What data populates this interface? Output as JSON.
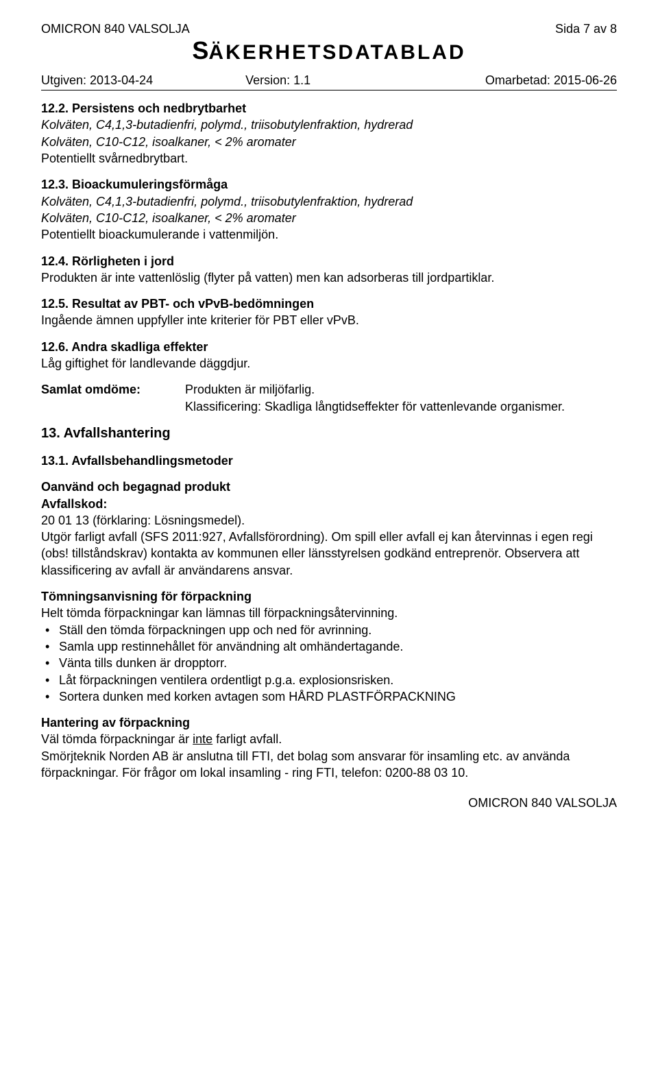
{
  "header": {
    "product": "OMICRON 840 VALSOLJA",
    "page": "Sida 7 av 8",
    "title_first": "S",
    "title_rest": "ÄKERHETSDATABLAD",
    "issued_label": "Utgiven: ",
    "issued": "2013-04-24",
    "version_label": "Version: ",
    "version": "1.1",
    "revised_label": "Omarbetad: ",
    "revised": "2015-06-26"
  },
  "s12_2": {
    "head": "12.2. Persistens och nedbrytbarhet",
    "line1": "Kolväten, C4,1,3-butadienfri, polymd., triisobutylenfraktion, hydrerad",
    "line2": "Kolväten, C10-C12, isoalkaner, < 2% aromater",
    "line3": "Potentiellt svårnedbrytbart."
  },
  "s12_3": {
    "head": "12.3. Bioackumuleringsförmåga",
    "line1": "Kolväten, C4,1,3-butadienfri, polymd., triisobutylenfraktion, hydrerad",
    "line2": "Kolväten, C10-C12, isoalkaner, < 2% aromater",
    "line3": "Potentiellt bioackumulerande i vattenmiljön."
  },
  "s12_4": {
    "head": "12.4. Rörligheten i jord",
    "body": "Produkten är inte vattenlöslig (flyter på vatten) men kan adsorberas till jordpartiklar."
  },
  "s12_5": {
    "head": "12.5. Resultat av PBT- och vPvB-bedömningen",
    "body": "Ingående ämnen uppfyller inte kriterier för PBT eller vPvB."
  },
  "s12_6": {
    "head": "12.6. Andra skadliga effekter",
    "body": "Låg giftighet för landlevande däggdjur."
  },
  "summary": {
    "label": "Samlat omdöme",
    "line1": "Produkten är miljöfarlig.",
    "line2": "Klassificering: Skadliga långtidseffekter för vattenlevande organismer."
  },
  "s13": {
    "head": "13. Avfallshantering",
    "s13_1_head": "13.1. Avfallsbehandlingsmetoder",
    "unused_head": "Oanvänd och begagnad produkt",
    "code_label": "Avfallskod:",
    "code_text": "20 01 13 (förklaring: Lösningsmedel).",
    "unused_body": "Utgör farligt avfall (SFS 2011:927, Avfallsförordning). Om spill eller avfall ej kan återvinnas i egen regi (obs! tillståndskrav) kontakta av kommunen eller länsstyrelsen godkänd entreprenör. Observera att klassificering av avfall är användarens ansvar.",
    "empty_head": "Tömningsanvisning för förpackning",
    "empty_intro": "Helt tömda förpackningar kan lämnas till förpackningsåtervinning.",
    "bullets": [
      "Ställ den tömda förpackningen upp och ned för avrinning.",
      "Samla upp restinnehållet för användning alt omhändertagande.",
      "Vänta tills dunken är dropptorr.",
      "Låt förpackningen ventilera ordentligt p.g.a. explosionsrisken.",
      "Sortera dunken med korken avtagen som HÅRD PLASTFÖRPACKNING"
    ],
    "handling_head": "Hantering av förpackning",
    "handling_pre": "Väl tömda förpackningar är ",
    "handling_under": "inte",
    "handling_post": " farligt avfall.",
    "handling_body": "Smörjteknik Norden AB är anslutna till FTI, det bolag som ansvarar för insamling etc. av använda förpackningar. För frågor om lokal insamling - ring FTI, telefon: 0200-88 03 10."
  },
  "footer": "OMICRON 840 VALSOLJA"
}
